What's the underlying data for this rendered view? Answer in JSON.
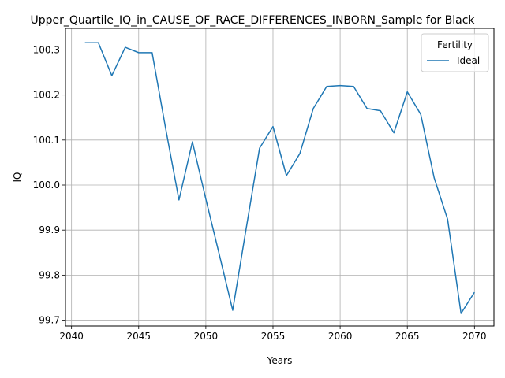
{
  "chart_data": {
    "type": "line",
    "title": "Upper_Quartile_IQ_in_CAUSE_OF_RACE_DIFFERENCES_INBORN_Sample for Black",
    "xlabel": "Years",
    "ylabel": "IQ",
    "xlim": [
      2039.55,
      2071.45
    ],
    "ylim": [
      99.687,
      100.348
    ],
    "x_ticks": [
      2040,
      2045,
      2050,
      2055,
      2060,
      2065,
      2070
    ],
    "y_ticks": [
      99.7,
      99.8,
      99.9,
      100.0,
      100.1,
      100.2,
      100.3
    ],
    "y_tick_labels": [
      "99.7",
      "99.8",
      "99.9",
      "100.0",
      "100.1",
      "100.2",
      "100.3"
    ],
    "grid": true,
    "legend": {
      "title": "Fertility",
      "placement": "top-right"
    },
    "series": [
      {
        "name": "Ideal",
        "color": "#1f77b4",
        "x": [
          2041,
          2042,
          2043,
          2044,
          2045,
          2046,
          2047,
          2048,
          2049,
          2050,
          2051,
          2052,
          2053,
          2054,
          2055,
          2056,
          2057,
          2058,
          2059,
          2060,
          2061,
          2062,
          2063,
          2064,
          2065,
          2066,
          2067,
          2068,
          2069,
          2070
        ],
        "y": [
          100.316,
          100.316,
          100.243,
          100.306,
          100.294,
          100.294,
          100.127,
          99.967,
          100.096,
          99.969,
          99.846,
          99.722,
          99.903,
          100.082,
          100.13,
          100.021,
          100.07,
          100.17,
          100.219,
          100.221,
          100.219,
          100.17,
          100.165,
          100.116,
          100.207,
          100.157,
          100.016,
          99.924,
          99.715,
          99.762
        ]
      }
    ]
  }
}
